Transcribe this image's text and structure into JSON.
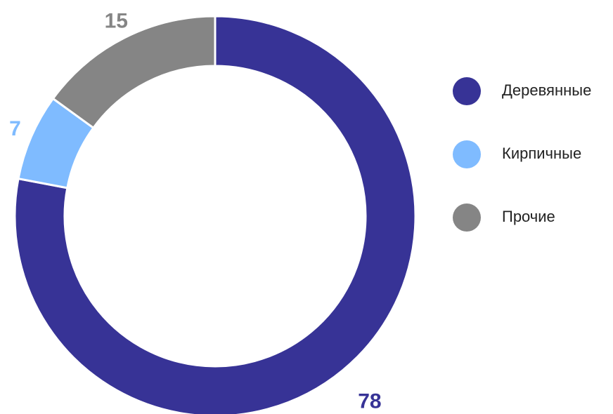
{
  "chart_data": {
    "type": "donut",
    "categories": [
      "Деревянные",
      "Кирпичные",
      "Прочие"
    ],
    "values": [
      78,
      7,
      15
    ],
    "colors": [
      "#373396",
      "#7fbbff",
      "#858585"
    ],
    "legend": "right"
  }
}
